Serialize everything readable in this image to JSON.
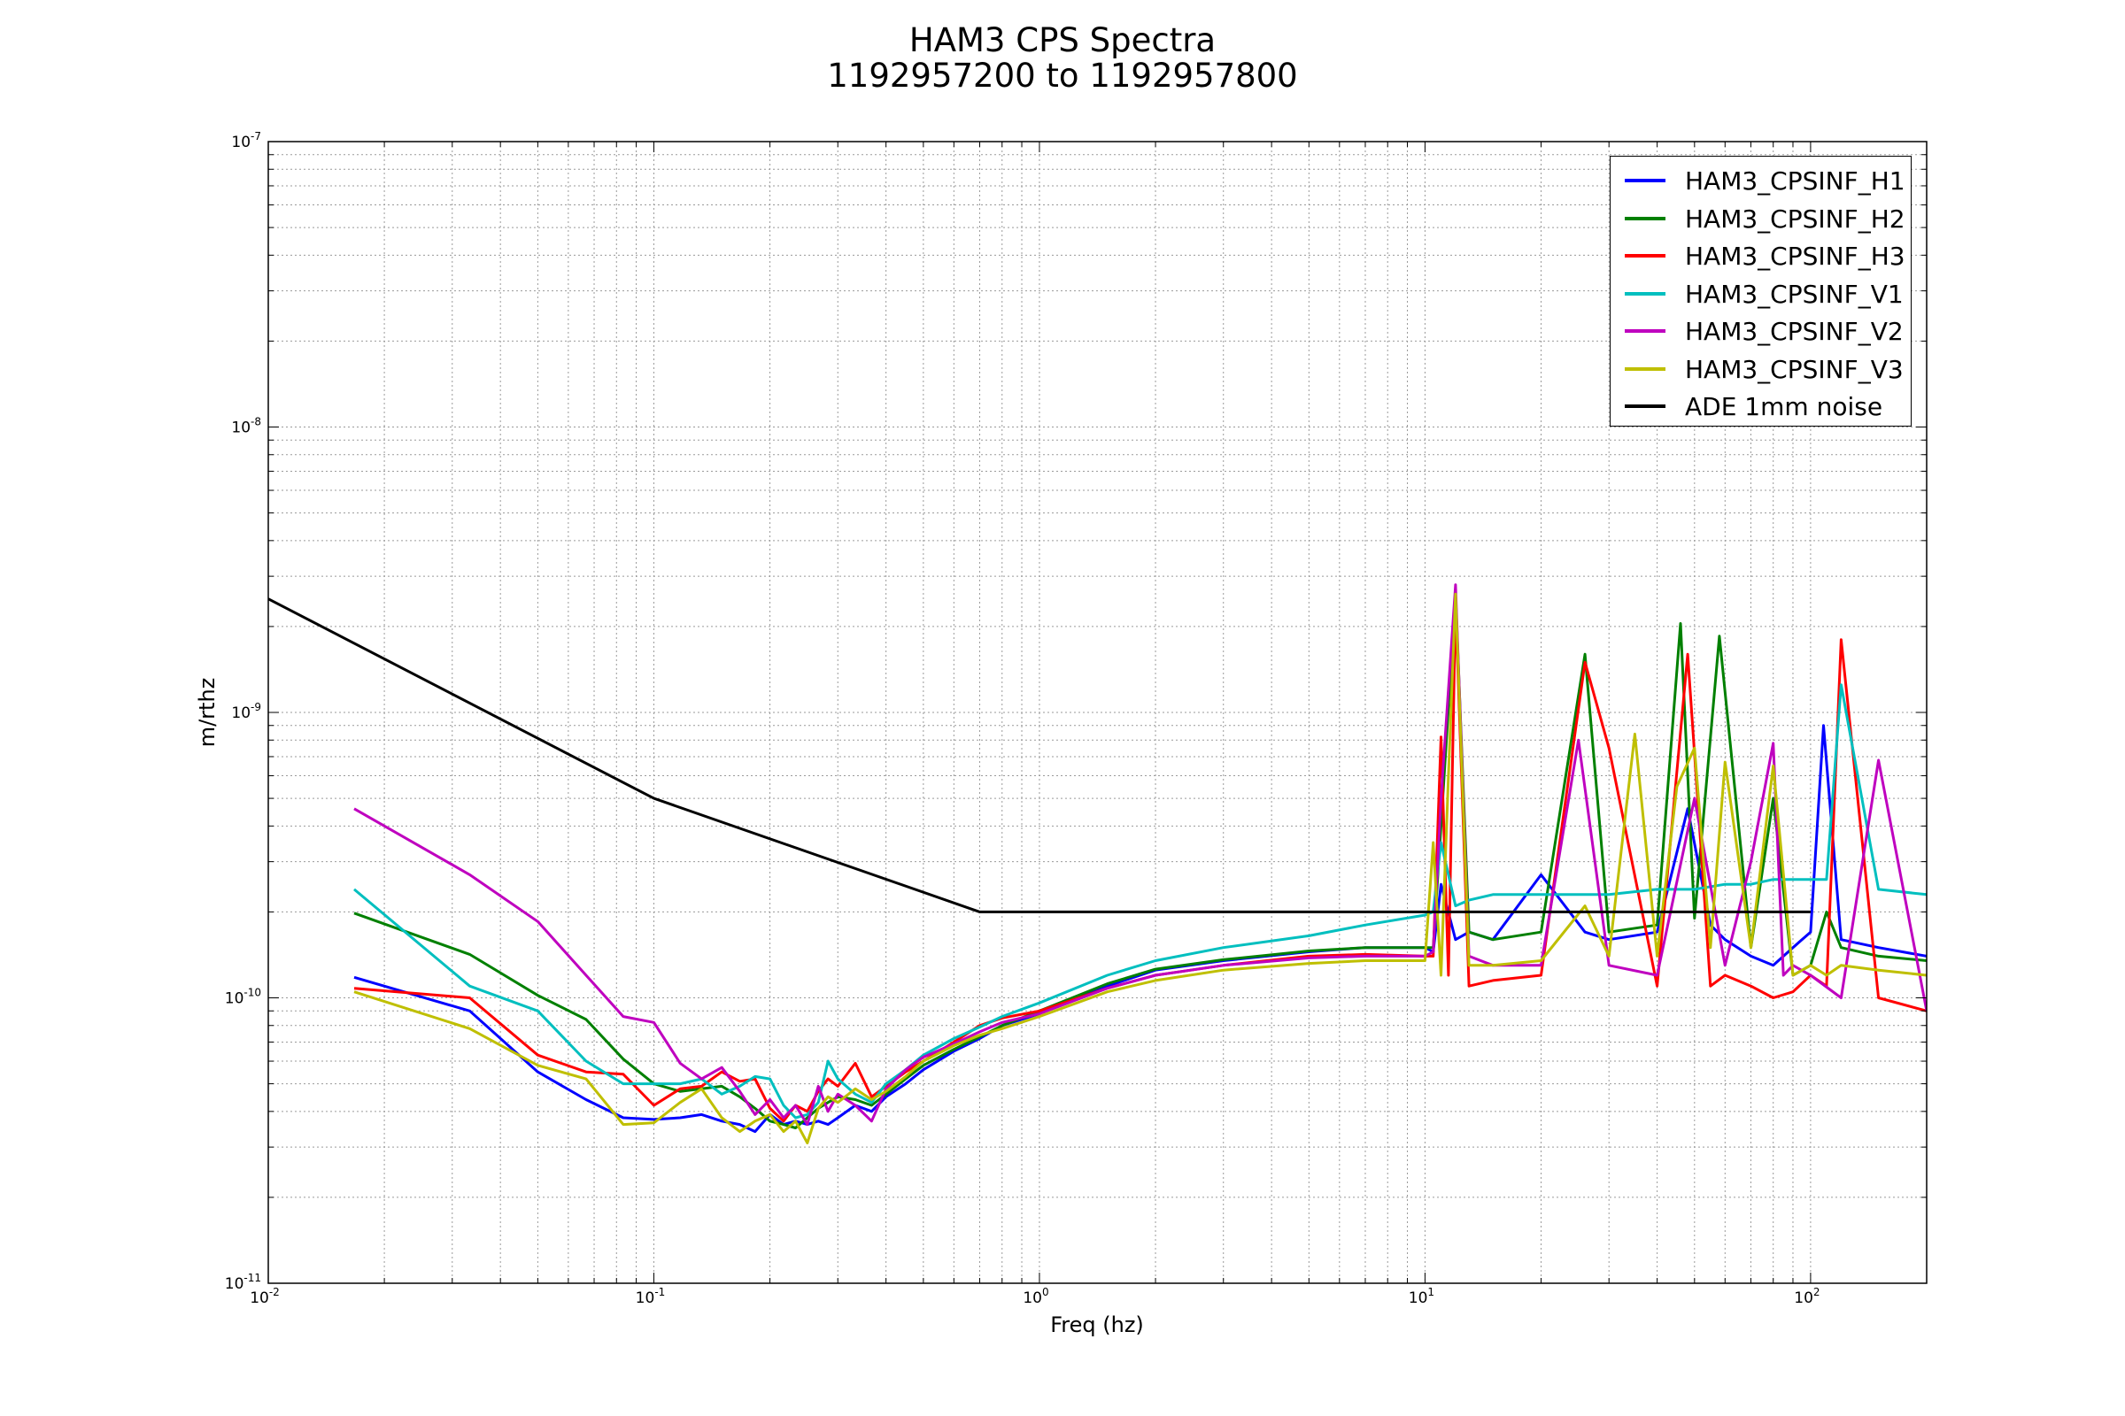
{
  "chart_data": {
    "type": "line",
    "title": "HAM3 CPS Spectra",
    "subtitle": "1192957200 to 1192957800",
    "xlabel": "Freq (hz)",
    "ylabel": "m/rthz",
    "xscale": "log",
    "yscale": "log",
    "xlim": [
      0.01,
      200
    ],
    "ylim": [
      1e-11,
      1e-07
    ],
    "grid": true,
    "legend_position": "top-right",
    "x_tick_labels": [
      {
        "base": "10",
        "exp": "-2",
        "value": 0.01
      },
      {
        "base": "10",
        "exp": "-1",
        "value": 0.1
      },
      {
        "base": "10",
        "exp": "0",
        "value": 1
      },
      {
        "base": "10",
        "exp": "1",
        "value": 10
      },
      {
        "base": "10",
        "exp": "2",
        "value": 100
      }
    ],
    "y_tick_labels": [
      {
        "base": "10",
        "exp": "-11",
        "value": 1e-11
      },
      {
        "base": "10",
        "exp": "-10",
        "value": 1e-10
      },
      {
        "base": "10",
        "exp": "-9",
        "value": 1e-09
      },
      {
        "base": "10",
        "exp": "-8",
        "value": 1e-08
      },
      {
        "base": "10",
        "exp": "-7",
        "value": 1e-07
      }
    ],
    "series": [
      {
        "name": "HAM3_CPSINF_H1",
        "color": "#0000ff",
        "x": [
          0.0167,
          0.0333,
          0.05,
          0.0667,
          0.0833,
          0.1,
          0.117,
          0.133,
          0.15,
          0.167,
          0.183,
          0.2,
          0.217,
          0.233,
          0.25,
          0.267,
          0.283,
          0.3,
          0.333,
          0.367,
          0.4,
          0.45,
          0.5,
          0.6,
          0.7,
          0.8,
          1.0,
          1.5,
          2,
          3,
          5,
          7,
          10,
          10.5,
          11,
          12,
          13,
          15,
          20,
          26,
          30,
          40,
          48,
          55,
          60,
          70,
          80,
          90,
          100,
          108,
          120,
          150,
          200
        ],
        "y": [
          1.18e-10,
          9e-11,
          5.5e-11,
          4.4e-11,
          3.8e-11,
          3.75e-11,
          3.8e-11,
          3.9e-11,
          3.7e-11,
          3.6e-11,
          3.4e-11,
          3.9e-11,
          3.6e-11,
          3.7e-11,
          3.6e-11,
          3.7e-11,
          3.6e-11,
          3.8e-11,
          4.2e-11,
          4e-11,
          4.5e-11,
          5e-11,
          5.6e-11,
          6.5e-11,
          7.2e-11,
          8e-11,
          8.8e-11,
          1.1e-10,
          1.25e-10,
          1.35e-10,
          1.45e-10,
          1.5e-10,
          1.5e-10,
          1.45e-10,
          2.5e-10,
          1.6e-10,
          1.7e-10,
          1.6e-10,
          2.7e-10,
          1.7e-10,
          1.6e-10,
          1.7e-10,
          4.6e-10,
          1.8e-10,
          1.6e-10,
          1.4e-10,
          1.3e-10,
          1.5e-10,
          1.7e-10,
          9e-10,
          1.6e-10,
          1.5e-10,
          1.4e-10
        ]
      },
      {
        "name": "HAM3_CPSINF_H2",
        "color": "#008000",
        "x": [
          0.0167,
          0.0333,
          0.05,
          0.0667,
          0.0833,
          0.1,
          0.117,
          0.133,
          0.15,
          0.167,
          0.183,
          0.2,
          0.217,
          0.233,
          0.25,
          0.267,
          0.283,
          0.3,
          0.333,
          0.367,
          0.4,
          0.45,
          0.5,
          0.6,
          0.7,
          0.8,
          1.0,
          1.5,
          2,
          3,
          5,
          7,
          10,
          10.5,
          11,
          12,
          13,
          15,
          20,
          26,
          30,
          40,
          46,
          50,
          58,
          70,
          80,
          90,
          100,
          110,
          120,
          150,
          200
        ],
        "y": [
          1.98e-10,
          1.42e-10,
          1.02e-10,
          8.4e-11,
          6.1e-11,
          5e-11,
          4.7e-11,
          4.8e-11,
          4.9e-11,
          4.5e-11,
          4.1e-11,
          3.7e-11,
          3.6e-11,
          3.5e-11,
          3.8e-11,
          4.1e-11,
          4.3e-11,
          4.5e-11,
          4.4e-11,
          4.2e-11,
          4.6e-11,
          5.2e-11,
          5.8e-11,
          6.6e-11,
          7.3e-11,
          8e-11,
          9e-11,
          1.12e-10,
          1.26e-10,
          1.36e-10,
          1.46e-10,
          1.5e-10,
          1.5e-10,
          1.5e-10,
          4e-10,
          2.6e-09,
          1.7e-10,
          1.6e-10,
          1.7e-10,
          1.6e-09,
          1.7e-10,
          1.8e-10,
          2.05e-09,
          1.9e-10,
          1.85e-09,
          1.5e-10,
          5e-10,
          1.2e-10,
          1.3e-10,
          2e-10,
          1.5e-10,
          1.4e-10,
          1.35e-10
        ]
      },
      {
        "name": "HAM3_CPSINF_H3",
        "color": "#ff0000",
        "x": [
          0.0167,
          0.0333,
          0.05,
          0.0667,
          0.0833,
          0.1,
          0.117,
          0.133,
          0.15,
          0.167,
          0.183,
          0.2,
          0.217,
          0.233,
          0.25,
          0.267,
          0.283,
          0.3,
          0.333,
          0.367,
          0.4,
          0.45,
          0.5,
          0.6,
          0.7,
          0.8,
          1.0,
          1.5,
          2,
          3,
          5,
          7,
          10,
          10.5,
          11,
          11.5,
          12,
          13,
          15,
          20,
          26,
          30,
          40,
          48,
          55,
          60,
          70,
          80,
          90,
          100,
          110,
          120,
          150,
          200
        ],
        "y": [
          1.08e-10,
          1e-10,
          6.3e-11,
          5.5e-11,
          5.4e-11,
          4.2e-11,
          4.8e-11,
          4.9e-11,
          5.5e-11,
          5.1e-11,
          5.2e-11,
          4.1e-11,
          3.7e-11,
          4.2e-11,
          4e-11,
          4.7e-11,
          5.2e-11,
          4.9e-11,
          5.9e-11,
          4.5e-11,
          4.9e-11,
          5.5e-11,
          6e-11,
          7e-11,
          8e-11,
          8.5e-11,
          9e-11,
          1.08e-10,
          1.2e-10,
          1.3e-10,
          1.4e-10,
          1.42e-10,
          1.4e-10,
          1.4e-10,
          8.2e-10,
          1.2e-10,
          2.4e-09,
          1.1e-10,
          1.15e-10,
          1.2e-10,
          1.5e-09,
          7.5e-10,
          1.1e-10,
          1.6e-09,
          1.1e-10,
          1.2e-10,
          1.1e-10,
          1e-10,
          1.05e-10,
          1.2e-10,
          1.1e-10,
          1.8e-09,
          1e-10,
          9e-11
        ]
      },
      {
        "name": "HAM3_CPSINF_V1",
        "color": "#00bfbf",
        "x": [
          0.0167,
          0.0333,
          0.05,
          0.0667,
          0.0833,
          0.1,
          0.117,
          0.133,
          0.15,
          0.167,
          0.183,
          0.2,
          0.217,
          0.233,
          0.25,
          0.267,
          0.283,
          0.3,
          0.333,
          0.367,
          0.4,
          0.45,
          0.5,
          0.6,
          0.7,
          0.8,
          1.0,
          1.5,
          2,
          3,
          5,
          7,
          10,
          10.5,
          11,
          12,
          13,
          15,
          20,
          30,
          40,
          50,
          60,
          70,
          80,
          90,
          100,
          110,
          120,
          150,
          200
        ],
        "y": [
          2.4e-10,
          1.1e-10,
          9e-11,
          6e-11,
          5e-11,
          5e-11,
          5e-11,
          5.2e-11,
          4.6e-11,
          4.9e-11,
          5.3e-11,
          5.2e-11,
          4.2e-11,
          3.8e-11,
          3.9e-11,
          4.3e-11,
          6e-11,
          5.2e-11,
          4.6e-11,
          4.3e-11,
          5e-11,
          5.6e-11,
          6.3e-11,
          7.2e-11,
          7.9e-11,
          8.6e-11,
          9.6e-11,
          1.2e-10,
          1.35e-10,
          1.5e-10,
          1.65e-10,
          1.8e-10,
          1.95e-10,
          2e-10,
          3.5e-10,
          2.1e-10,
          2.2e-10,
          2.3e-10,
          2.3e-10,
          2.3e-10,
          2.4e-10,
          2.4e-10,
          2.5e-10,
          2.5e-10,
          2.6e-10,
          2.6e-10,
          2.6e-10,
          2.6e-10,
          1.25e-09,
          2.4e-10,
          2.3e-10
        ]
      },
      {
        "name": "HAM3_CPSINF_V2",
        "color": "#bf00bf",
        "x": [
          0.0167,
          0.0333,
          0.05,
          0.0667,
          0.0833,
          0.1,
          0.117,
          0.133,
          0.15,
          0.167,
          0.183,
          0.2,
          0.217,
          0.233,
          0.25,
          0.267,
          0.283,
          0.3,
          0.333,
          0.367,
          0.4,
          0.45,
          0.5,
          0.6,
          0.7,
          0.8,
          1.0,
          1.5,
          2,
          3,
          5,
          7,
          10,
          10.5,
          11,
          12,
          13,
          15,
          20,
          25,
          30,
          40,
          50,
          60,
          70,
          80,
          85,
          90,
          100,
          120,
          150,
          200
        ],
        "y": [
          4.6e-10,
          2.7e-10,
          1.85e-10,
          1.2e-10,
          8.6e-11,
          8.2e-11,
          5.9e-11,
          5.2e-11,
          5.7e-11,
          4.7e-11,
          3.9e-11,
          4.4e-11,
          3.8e-11,
          4.2e-11,
          3.6e-11,
          4.9e-11,
          4e-11,
          4.6e-11,
          4.2e-11,
          3.7e-11,
          4.8e-11,
          5.6e-11,
          6.2e-11,
          6.9e-11,
          7.6e-11,
          8.2e-11,
          8.8e-11,
          1.08e-10,
          1.2e-10,
          1.3e-10,
          1.38e-10,
          1.4e-10,
          1.4e-10,
          1.45e-10,
          5e-10,
          2.8e-09,
          1.4e-10,
          1.3e-10,
          1.3e-10,
          8e-10,
          1.3e-10,
          1.2e-10,
          5e-10,
          1.3e-10,
          3e-10,
          7.8e-10,
          1.2e-10,
          1.3e-10,
          1.2e-10,
          1e-10,
          6.8e-10,
          9e-11
        ]
      },
      {
        "name": "HAM3_CPSINF_V3",
        "color": "#bfbf00",
        "x": [
          0.0167,
          0.0333,
          0.05,
          0.0667,
          0.0833,
          0.1,
          0.117,
          0.133,
          0.15,
          0.167,
          0.183,
          0.2,
          0.217,
          0.233,
          0.25,
          0.267,
          0.283,
          0.3,
          0.333,
          0.367,
          0.4,
          0.45,
          0.5,
          0.6,
          0.7,
          0.8,
          1.0,
          1.5,
          2,
          3,
          5,
          7,
          10,
          10.5,
          11,
          11.5,
          12,
          13,
          15,
          20,
          26,
          30,
          35,
          40,
          45,
          50,
          55,
          60,
          70,
          80,
          90,
          100,
          110,
          120,
          150,
          200
        ],
        "y": [
          1.05e-10,
          7.8e-11,
          5.8e-11,
          5.2e-11,
          3.6e-11,
          3.65e-11,
          4.3e-11,
          4.8e-11,
          3.8e-11,
          3.4e-11,
          3.7e-11,
          3.9e-11,
          3.4e-11,
          3.7e-11,
          3.1e-11,
          4.1e-11,
          4.5e-11,
          4.3e-11,
          4.8e-11,
          4.4e-11,
          4.7e-11,
          5.3e-11,
          6e-11,
          6.8e-11,
          7.4e-11,
          7.8e-11,
          8.6e-11,
          1.05e-10,
          1.15e-10,
          1.25e-10,
          1.32e-10,
          1.35e-10,
          1.35e-10,
          3.5e-10,
          1.2e-10,
          6e-10,
          2.6e-09,
          1.3e-10,
          1.3e-10,
          1.35e-10,
          2.1e-10,
          1.4e-10,
          8.4e-10,
          1.4e-10,
          5.5e-10,
          7.5e-10,
          1.5e-10,
          6.7e-10,
          1.5e-10,
          6.5e-10,
          1.2e-10,
          1.3e-10,
          1.2e-10,
          1.3e-10,
          1.25e-10,
          1.2e-10
        ]
      },
      {
        "name": "ADE 1mm noise",
        "color": "#000000",
        "x": [
          0.01,
          0.1,
          0.7,
          100
        ],
        "y": [
          2.5e-09,
          5e-10,
          2e-10,
          2e-10
        ]
      }
    ]
  }
}
